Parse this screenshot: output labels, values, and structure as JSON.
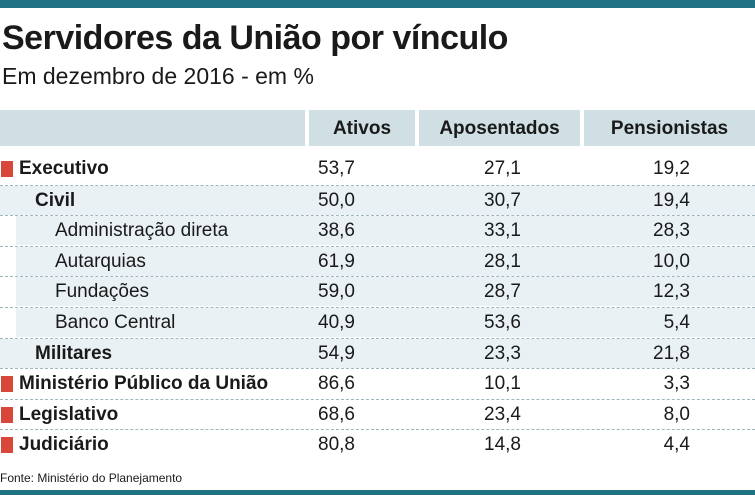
{
  "title": "Servidores da União por vínculo",
  "subtitle": "Em dezembro de 2016 - em %",
  "source": "Fonte: Ministério do Planejamento",
  "colors": {
    "accent_rule": "#1f7382",
    "header_fill": "#cfdfe4",
    "row_shade": "#e9f1f4",
    "bullet": "#d9473a"
  },
  "chart_data": {
    "type": "table",
    "columns": [
      "Ativos",
      "Aposentados",
      "Pensionistas"
    ],
    "rows": [
      {
        "label": "Executivo",
        "level": 0,
        "values": [
          "53,7",
          "27,1",
          "19,2"
        ]
      },
      {
        "label": "Civil",
        "level": 1,
        "values": [
          "50,0",
          "30,7",
          "19,4"
        ]
      },
      {
        "label": "Administração direta",
        "level": 2,
        "values": [
          "38,6",
          "33,1",
          "28,3"
        ]
      },
      {
        "label": "Autarquias",
        "level": 2,
        "values": [
          "61,9",
          "28,1",
          "10,0"
        ]
      },
      {
        "label": "Fundações",
        "level": 2,
        "values": [
          "59,0",
          "28,7",
          "12,3"
        ]
      },
      {
        "label": "Banco Central",
        "level": 2,
        "values": [
          "40,9",
          "53,6",
          "5,4"
        ]
      },
      {
        "label": "Militares",
        "level": 1,
        "values": [
          "54,9",
          "23,3",
          "21,8"
        ]
      },
      {
        "label": "Ministério Público da União",
        "level": 0,
        "values": [
          "86,6",
          "10,1",
          "3,3"
        ]
      },
      {
        "label": "Legislativo",
        "level": 0,
        "values": [
          "68,6",
          "23,4",
          "8,0"
        ]
      },
      {
        "label": "Judiciário",
        "level": 0,
        "values": [
          "80,8",
          "14,8",
          "4,4"
        ]
      }
    ]
  }
}
